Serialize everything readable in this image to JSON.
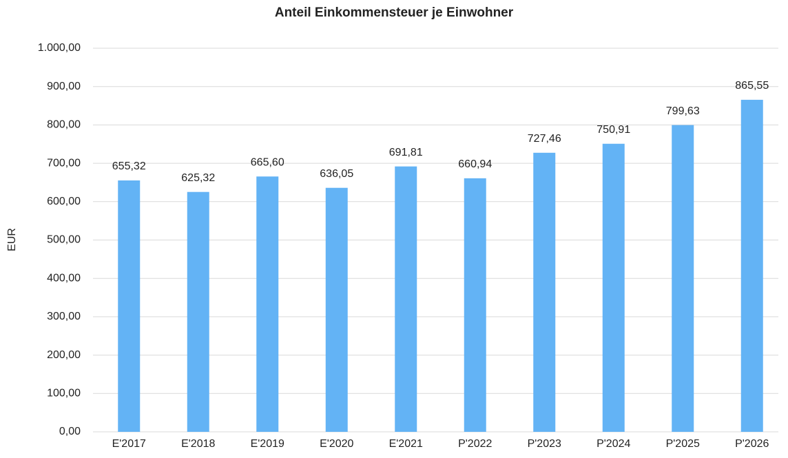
{
  "chart_data": {
    "type": "bar",
    "title": "Anteil Einkommensteuer je Einwohner",
    "y_label": "EUR",
    "categories": [
      "E'2017",
      "E'2018",
      "E'2019",
      "E'2020",
      "E'2021",
      "P'2022",
      "P'2023",
      "P'2024",
      "P'2025",
      "P'2026"
    ],
    "values": [
      655.32,
      625.32,
      665.6,
      636.05,
      691.81,
      660.94,
      727.46,
      750.91,
      799.63,
      865.55
    ],
    "value_labels": [
      "655,32",
      "625,32",
      "665,60",
      "636,05",
      "691,81",
      "660,94",
      "727,46",
      "750,91",
      "799,63",
      "865,55"
    ],
    "color": "#63b3f5",
    "ylim": [
      0,
      1000
    ],
    "yticks": [
      {
        "value": 0,
        "label": "0,00"
      },
      {
        "value": 100,
        "label": "100,00"
      },
      {
        "value": 200,
        "label": "200,00"
      },
      {
        "value": 300,
        "label": "300,00"
      },
      {
        "value": 400,
        "label": "400,00"
      },
      {
        "value": 500,
        "label": "500,00"
      },
      {
        "value": 600,
        "label": "600,00"
      },
      {
        "value": 700,
        "label": "700,00"
      },
      {
        "value": 800,
        "label": "800,00"
      },
      {
        "value": 900,
        "label": "900,00"
      },
      {
        "value": 1000,
        "label": "1.000,00"
      }
    ],
    "grid": true
  }
}
